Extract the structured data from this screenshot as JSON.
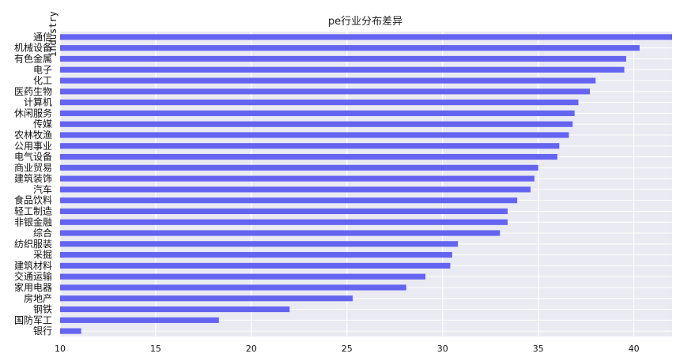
{
  "chart_data": {
    "type": "bar",
    "orientation": "horizontal",
    "title": "pe行业分布差异",
    "ylabel": "industry",
    "xlabel": "",
    "xlim": [
      10,
      42
    ],
    "xticks": [
      10,
      15,
      20,
      25,
      30,
      35,
      40
    ],
    "grid": true,
    "bar_color": "#6464f0",
    "background": "#eaeaf2",
    "categories": [
      "通信",
      "机械设备",
      "有色金属",
      "电子",
      "化工",
      "医药生物",
      "计算机",
      "休闲服务",
      "传媒",
      "农林牧渔",
      "公用事业",
      "电气设备",
      "商业贸易",
      "建筑装饰",
      "汽车",
      "食品饮料",
      "轻工制造",
      "非银金融",
      "综合",
      "纺织服装",
      "采掘",
      "建筑材料",
      "交通运输",
      "家用电器",
      "房地产",
      "钢铁",
      "国防军工",
      "银行"
    ],
    "values": [
      42.0,
      40.3,
      39.6,
      39.5,
      38.0,
      37.7,
      37.1,
      36.9,
      36.8,
      36.6,
      36.1,
      36.0,
      35.0,
      34.8,
      34.6,
      33.9,
      33.4,
      33.4,
      33.0,
      30.8,
      30.5,
      30.4,
      29.1,
      28.1,
      25.3,
      22.0,
      18.3,
      11.1
    ]
  }
}
